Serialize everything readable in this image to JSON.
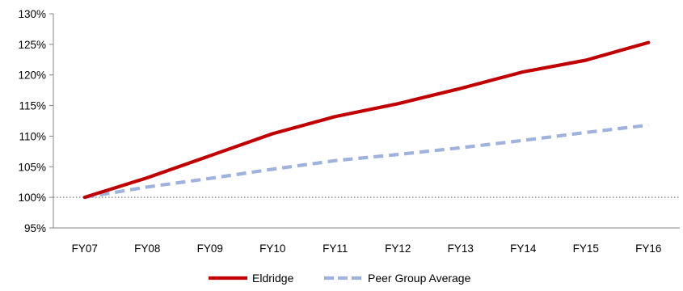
{
  "chart_data": {
    "type": "line",
    "categories": [
      "FY07",
      "FY08",
      "FY09",
      "FY10",
      "FY11",
      "FY12",
      "FY13",
      "FY14",
      "FY15",
      "FY16"
    ],
    "series": [
      {
        "name": "Eldridge",
        "values": [
          100.0,
          103.2,
          106.8,
          110.4,
          113.2,
          115.3,
          117.8,
          120.5,
          122.4,
          125.3
        ],
        "color": "#c00000",
        "style": "solid"
      },
      {
        "name": "Peer Group Average",
        "values": [
          100.0,
          101.7,
          103.1,
          104.6,
          106.0,
          107.0,
          108.1,
          109.3,
          110.6,
          111.8
        ],
        "color": "#9eb2dc",
        "style": "dashed"
      }
    ],
    "yticks": [
      "95%",
      "100%",
      "105%",
      "110%",
      "115%",
      "120%",
      "125%",
      "130%"
    ],
    "ylim": [
      95,
      130
    ],
    "reference_line": 100,
    "grid": false,
    "legend_position": "bottom-center"
  }
}
